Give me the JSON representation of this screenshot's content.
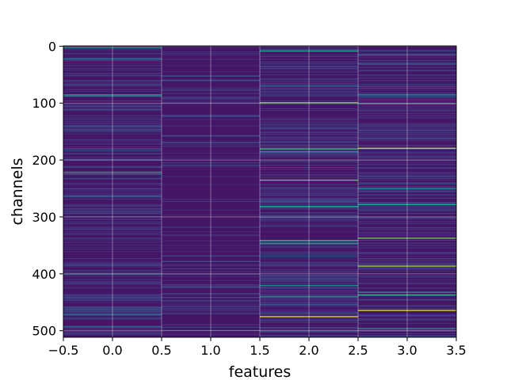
{
  "chart_data": {
    "type": "heatmap",
    "title": "",
    "xlabel": "features",
    "ylabel": "channels",
    "xlim": [
      -0.5,
      3.5
    ],
    "ylim": [
      511.5,
      -0.5
    ],
    "y_inverted": true,
    "columns": [
      0,
      1,
      2,
      3
    ],
    "rows": 512,
    "colormap": "viridis",
    "grid": true,
    "xticks": [
      "−0.5",
      "0.0",
      "0.5",
      "1.0",
      "1.5",
      "2.0",
      "2.5",
      "3.0",
      "3.5"
    ],
    "xtick_values": [
      -0.5,
      0.0,
      0.5,
      1.0,
      1.5,
      2.0,
      2.5,
      3.0,
      3.5
    ],
    "yticks": [
      "0",
      "100",
      "200",
      "300",
      "400",
      "500"
    ],
    "ytick_values": [
      0,
      100,
      200,
      300,
      400,
      500
    ],
    "background_level": 0.06,
    "highlights": [
      {
        "feature": 0,
        "channel": 2,
        "value": 0.55
      },
      {
        "feature": 0,
        "channel": 22,
        "value": 0.4
      },
      {
        "feature": 0,
        "channel": 85,
        "value": 0.5
      },
      {
        "feature": 0,
        "channel": 87,
        "value": 0.4
      },
      {
        "feature": 0,
        "channel": 221,
        "value": 0.55
      },
      {
        "feature": 0,
        "channel": 224,
        "value": 0.4
      },
      {
        "feature": 0,
        "channel": 264,
        "value": 0.3
      },
      {
        "feature": 0,
        "channel": 400,
        "value": 0.4
      },
      {
        "feature": 0,
        "channel": 471,
        "value": 0.35
      },
      {
        "feature": 0,
        "channel": 493,
        "value": 0.3
      },
      {
        "feature": 1,
        "channel": 52,
        "value": 0.3
      },
      {
        "feature": 1,
        "channel": 60,
        "value": 0.25
      },
      {
        "feature": 1,
        "channel": 378,
        "value": 0.25
      },
      {
        "feature": 2,
        "channel": 8,
        "value": 0.6
      },
      {
        "feature": 2,
        "channel": 70,
        "value": 0.35
      },
      {
        "feature": 2,
        "channel": 99,
        "value": 0.8
      },
      {
        "feature": 2,
        "channel": 180,
        "value": 0.7
      },
      {
        "feature": 2,
        "channel": 185,
        "value": 0.5
      },
      {
        "feature": 2,
        "channel": 235,
        "value": 0.75
      },
      {
        "feature": 2,
        "channel": 281,
        "value": 0.6
      },
      {
        "feature": 2,
        "channel": 341,
        "value": 0.65
      },
      {
        "feature": 2,
        "channel": 346,
        "value": 0.55
      },
      {
        "feature": 2,
        "channel": 420,
        "value": 0.5
      },
      {
        "feature": 2,
        "channel": 440,
        "value": 0.55
      },
      {
        "feature": 2,
        "channel": 475,
        "value": 0.95
      },
      {
        "feature": 3,
        "channel": 15,
        "value": 0.4
      },
      {
        "feature": 3,
        "channel": 85,
        "value": 0.45
      },
      {
        "feature": 3,
        "channel": 101,
        "value": 0.5
      },
      {
        "feature": 3,
        "channel": 179,
        "value": 0.9
      },
      {
        "feature": 3,
        "channel": 250,
        "value": 0.5
      },
      {
        "feature": 3,
        "channel": 278,
        "value": 0.6
      },
      {
        "feature": 3,
        "channel": 337,
        "value": 0.8
      },
      {
        "feature": 3,
        "channel": 386,
        "value": 0.85
      },
      {
        "feature": 3,
        "channel": 432,
        "value": 0.55
      },
      {
        "feature": 3,
        "channel": 437,
        "value": 0.65
      },
      {
        "feature": 3,
        "channel": 464,
        "value": 0.95
      },
      {
        "feature": 3,
        "channel": 496,
        "value": 0.5
      }
    ]
  }
}
